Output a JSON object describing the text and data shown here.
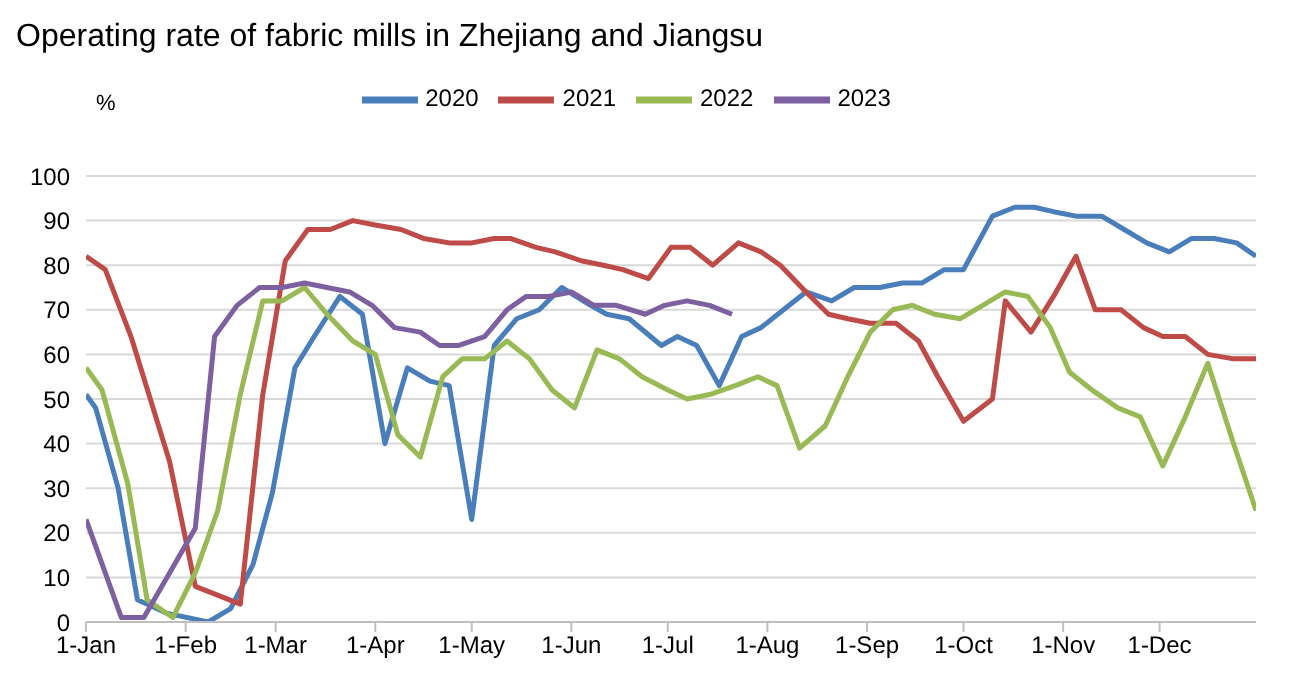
{
  "chart_data": {
    "type": "line",
    "title": "Operating rate of fabric mills in Zhejiang and Jiangsu",
    "ylabel": "%",
    "xlim": [
      "--01-01",
      "--12-31"
    ],
    "xticks": [
      {
        "value": "--01-01",
        "label": "1-Jan"
      },
      {
        "value": "--02-01",
        "label": "1-Feb"
      },
      {
        "value": "--03-01",
        "label": "1-Mar"
      },
      {
        "value": "--04-01",
        "label": "1-Apr"
      },
      {
        "value": "--05-01",
        "label": "1-May"
      },
      {
        "value": "--06-01",
        "label": "1-Jun"
      },
      {
        "value": "--07-01",
        "label": "1-Jul"
      },
      {
        "value": "--08-01",
        "label": "1-Aug"
      },
      {
        "value": "--09-01",
        "label": "1-Sep"
      },
      {
        "value": "--10-01",
        "label": "1-Oct"
      },
      {
        "value": "--11-01",
        "label": "1-Nov"
      },
      {
        "value": "--12-01",
        "label": "1-Dec"
      }
    ],
    "ylim": [
      0,
      100
    ],
    "yticks": [
      0,
      10,
      20,
      30,
      40,
      50,
      60,
      70,
      80,
      90,
      100
    ],
    "grid": "y",
    "legend": "top",
    "marker": "none",
    "line_style": "solid",
    "series": [
      {
        "name": "2020",
        "color": "#4a7ebb",
        "x": [
          "--01-01",
          "--01-04",
          "--01-11",
          "--01-17",
          "--01-26",
          "--02-08",
          "--02-15",
          "--02-22",
          "--02-28",
          "--03-07",
          "--03-13",
          "--03-21",
          "--03-28",
          "--04-04",
          "--04-11",
          "--04-18",
          "--04-24",
          "--05-01",
          "--05-08",
          "--05-15",
          "--05-22",
          "--05-29",
          "--06-07",
          "--06-12",
          "--06-19",
          "--06-29",
          "--07-04",
          "--07-10",
          "--07-17",
          "--07-24",
          "--07-30",
          "--08-06",
          "--08-13",
          "--08-21",
          "--08-28",
          "--09-05",
          "--09-12",
          "--09-18",
          "--09-25",
          "--10-01",
          "--10-10",
          "--10-17",
          "--10-23",
          "--10-29",
          "--11-05",
          "--11-13",
          "--11-20",
          "--11-27",
          "--12-04",
          "--12-11",
          "--12-18",
          "--12-25",
          "--12-31"
        ],
        "values": [
          51,
          48,
          30,
          5,
          2,
          0,
          3,
          13,
          29,
          57,
          64,
          73,
          69,
          40,
          57,
          54,
          53,
          23,
          62,
          68,
          70,
          75,
          71,
          69,
          68,
          62,
          64,
          62,
          53,
          64,
          66,
          70,
          74,
          72,
          75,
          75,
          76,
          76,
          79,
          79,
          91,
          93,
          93,
          92,
          91,
          91,
          88,
          85,
          83,
          86,
          86,
          85,
          82
        ]
      },
      {
        "name": "2021",
        "color": "#be4b48",
        "x": [
          "--01-01",
          "--01-07",
          "--01-15",
          "--01-27",
          "--02-04",
          "--02-18",
          "--02-25",
          "--03-04",
          "--03-11",
          "--03-18",
          "--03-25",
          "--04-01",
          "--04-09",
          "--04-16",
          "--04-24",
          "--05-01",
          "--05-08",
          "--05-13",
          "--05-21",
          "--05-27",
          "--06-04",
          "--06-11",
          "--06-17",
          "--06-25",
          "--07-02",
          "--07-08",
          "--07-15",
          "--07-23",
          "--07-30",
          "--08-05",
          "--08-13",
          "--08-20",
          "--08-26",
          "--09-02",
          "--09-10",
          "--09-17",
          "--09-23",
          "--10-01",
          "--10-10",
          "--10-14",
          "--10-22",
          "--10-29",
          "--11-05",
          "--11-11",
          "--11-19",
          "--11-26",
          "--12-02",
          "--12-09",
          "--12-16",
          "--12-24",
          "--12-31"
        ],
        "values": [
          82,
          79,
          64,
          36,
          8,
          4,
          51,
          81,
          88,
          88,
          90,
          89,
          88,
          86,
          85,
          85,
          86,
          86,
          84,
          83,
          81,
          80,
          79,
          77,
          84,
          84,
          80,
          85,
          83,
          80,
          74,
          69,
          68,
          67,
          67,
          63,
          55,
          45,
          50,
          72,
          65,
          73,
          82,
          70,
          70,
          66,
          64,
          64,
          60,
          59,
          59
        ]
      },
      {
        "name": "2022",
        "color": "#98b954",
        "x": [
          "--01-01",
          "--01-06",
          "--01-14",
          "--01-20",
          "--01-28",
          "--02-04",
          "--02-11",
          "--02-18",
          "--02-25",
          "--03-03",
          "--03-10",
          "--03-17",
          "--03-25",
          "--04-01",
          "--04-08",
          "--04-15",
          "--04-22",
          "--04-28",
          "--05-05",
          "--05-12",
          "--05-19",
          "--05-26",
          "--06-02",
          "--06-09",
          "--06-16",
          "--06-23",
          "--07-01",
          "--07-07",
          "--07-14",
          "--07-22",
          "--07-29",
          "--08-04",
          "--08-11",
          "--08-19",
          "--08-26",
          "--09-02",
          "--09-09",
          "--09-15",
          "--09-22",
          "--09-30",
          "--10-07",
          "--10-14",
          "--10-21",
          "--10-28",
          "--11-03",
          "--11-10",
          "--11-18",
          "--11-25",
          "--12-02",
          "--12-09",
          "--12-16",
          "--12-24",
          "--12-31"
        ],
        "values": [
          57,
          52,
          31,
          5,
          1,
          11,
          25,
          51,
          72,
          72,
          75,
          69,
          63,
          60,
          42,
          37,
          55,
          59,
          59,
          63,
          59,
          52,
          48,
          61,
          59,
          55,
          52,
          50,
          51,
          53,
          55,
          53,
          39,
          44,
          55,
          65,
          70,
          71,
          69,
          68,
          71,
          74,
          73,
          66,
          56,
          52,
          48,
          46,
          35,
          46,
          58,
          40,
          25
        ]
      },
      {
        "name": "2023",
        "color": "#7d60a0",
        "x": [
          "--01-01",
          "--01-07",
          "--01-12",
          "--01-19",
          "--01-27",
          "--02-04",
          "--02-10",
          "--02-17",
          "--02-24",
          "--03-03",
          "--03-10",
          "--03-17",
          "--03-24",
          "--03-31",
          "--04-07",
          "--04-15",
          "--04-21",
          "--04-27",
          "--05-05",
          "--05-12",
          "--05-18",
          "--05-25",
          "--06-01",
          "--06-08",
          "--06-15",
          "--06-24",
          "--06-30",
          "--07-07",
          "--07-14",
          "--07-21"
        ],
        "values": [
          23,
          11,
          1,
          1,
          11,
          21,
          64,
          71,
          75,
          75,
          76,
          75,
          74,
          71,
          66,
          65,
          62,
          62,
          64,
          70,
          73,
          73,
          74,
          71,
          71,
          69,
          71,
          72,
          71,
          69
        ]
      }
    ]
  }
}
